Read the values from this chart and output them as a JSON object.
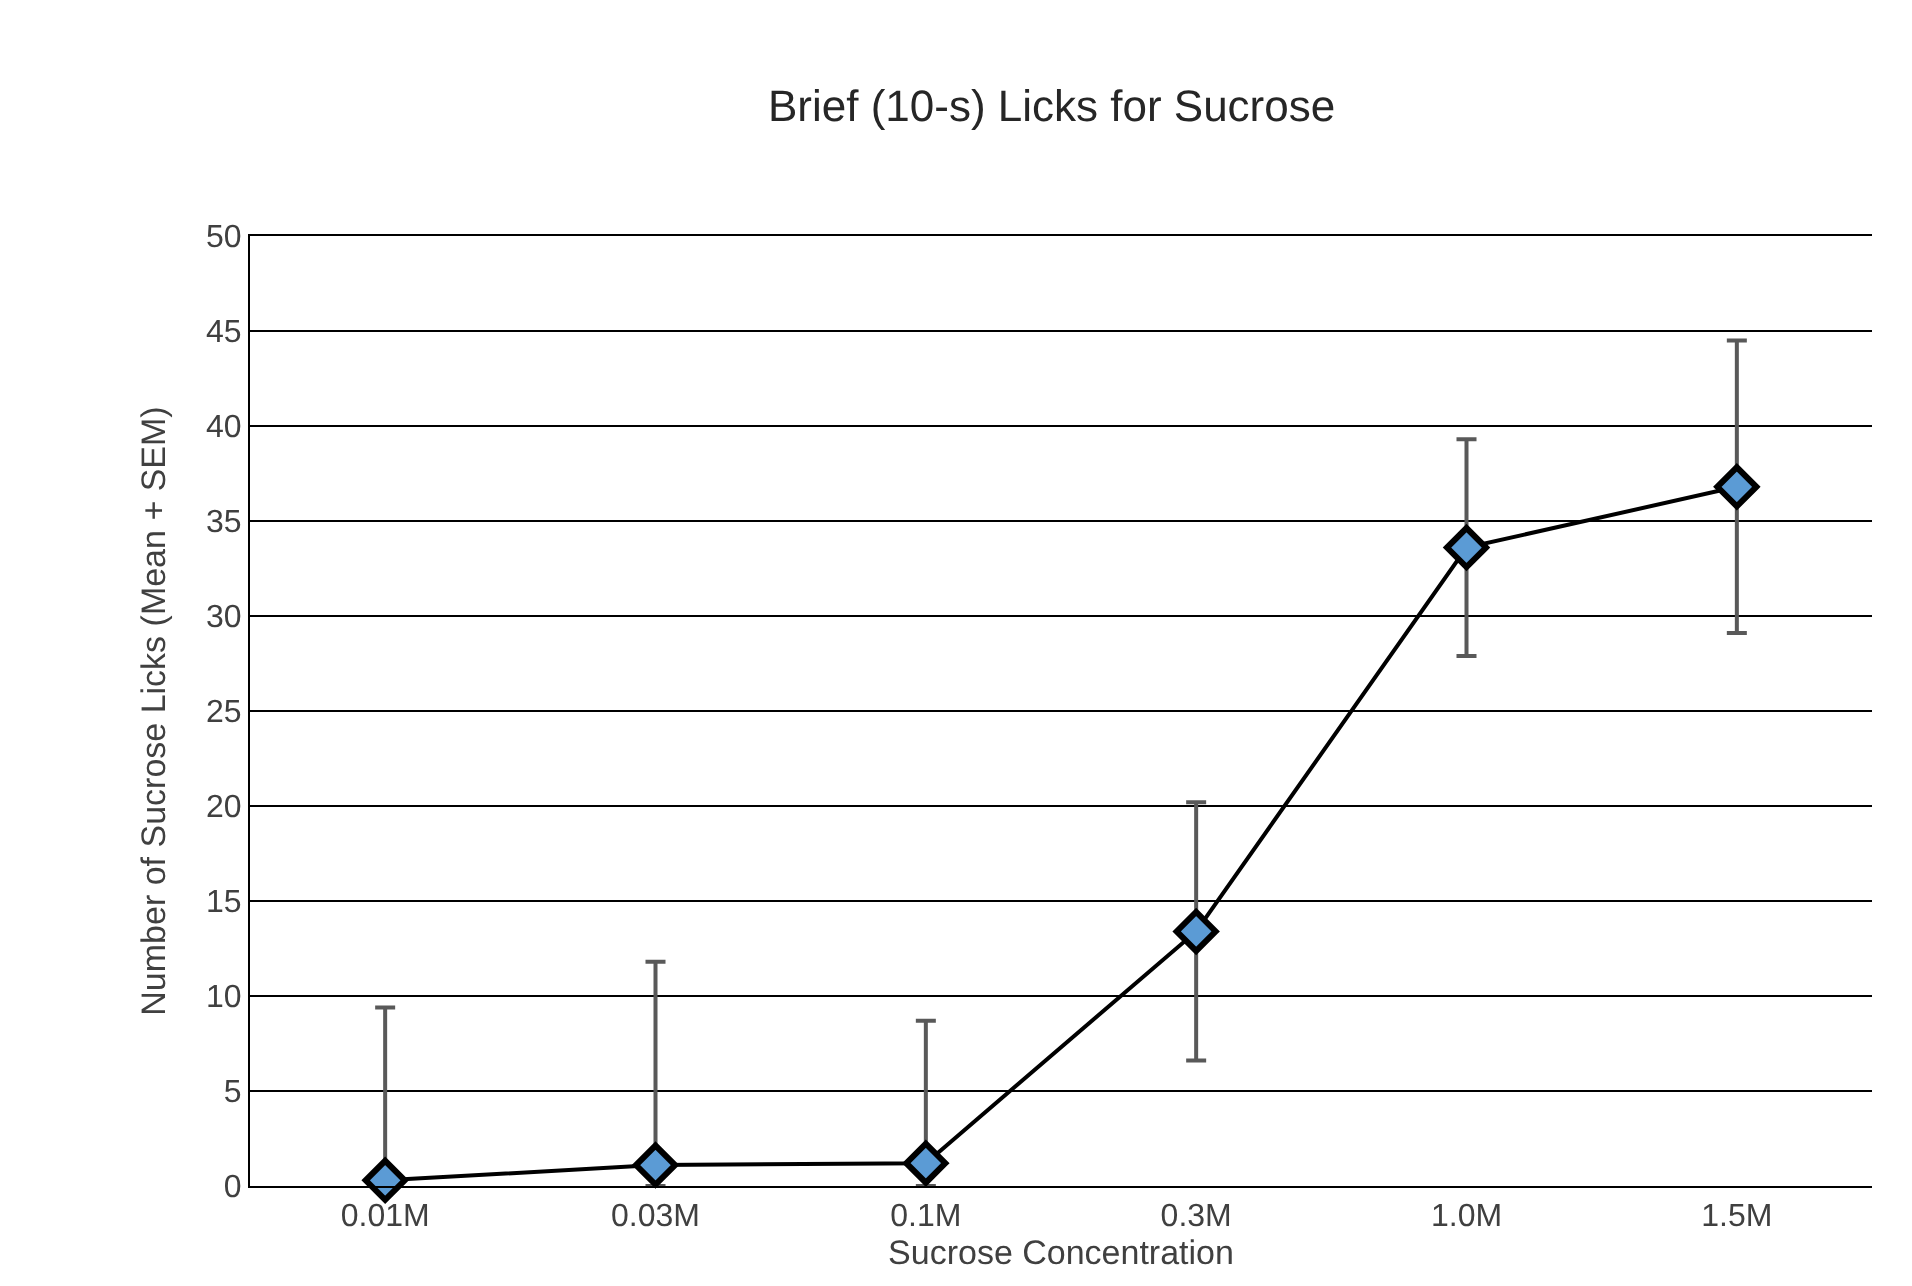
{
  "chart_data": {
    "type": "line",
    "title": "Brief (10-s) Licks for Sucrose",
    "xlabel": "Sucrose Concentration",
    "ylabel": "Number of Sucrose Licks (Mean + SEM)",
    "categories": [
      "0.01M",
      "0.03M",
      "0.1M",
      "0.3M",
      "1.0M",
      "1.5M"
    ],
    "series": [
      {
        "color": "#5b9bd5",
        "values": [
          0.3,
          1.1,
          1.2,
          13.4,
          33.6,
          36.8
        ],
        "errors": [
          [
            0,
            9.4
          ],
          [
            0,
            11.8
          ],
          [
            0,
            8.7
          ],
          [
            6.6,
            20.2
          ],
          [
            27.9,
            39.3
          ],
          [
            29.1,
            44.5
          ]
        ]
      }
    ],
    "ylim": [
      0,
      50
    ],
    "yticks": [
      0,
      5,
      10,
      15,
      20,
      25,
      30,
      35,
      40,
      45,
      50
    ],
    "grid": "y",
    "marker": "diamond",
    "line_style": "solid"
  }
}
